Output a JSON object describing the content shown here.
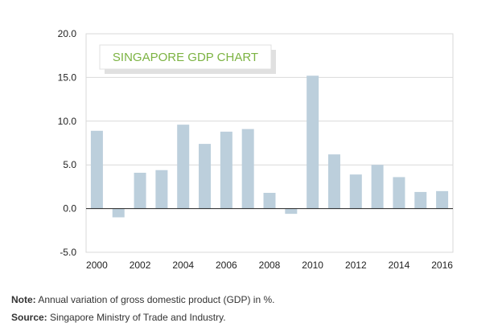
{
  "chart_data": {
    "type": "bar",
    "title": "SINGAPORE GDP CHART",
    "categories": [
      2000,
      2001,
      2002,
      2003,
      2004,
      2005,
      2006,
      2007,
      2008,
      2009,
      2010,
      2011,
      2012,
      2013,
      2014,
      2015,
      2016
    ],
    "values": [
      8.9,
      -1.0,
      4.1,
      4.4,
      9.6,
      7.4,
      8.8,
      9.1,
      1.8,
      -0.6,
      15.2,
      6.2,
      3.9,
      5.0,
      3.6,
      1.9,
      2.0
    ],
    "x_tick_labels": [
      "2000",
      "2002",
      "2004",
      "2006",
      "2008",
      "2010",
      "2012",
      "2014",
      "2016"
    ],
    "y_tick_labels": [
      "20.0",
      "15.0",
      "10.0",
      "5.0",
      "0.0",
      "-5.0"
    ],
    "ylim": [
      -5,
      20
    ],
    "grid": true,
    "colors": {
      "bar": "#bccfdc",
      "grid": "#d9d9d9",
      "title": "#7cb342",
      "axis": "#222222"
    }
  },
  "footer": {
    "note_label": "Note:",
    "note_text": " Annual variation of gross domestic product (GDP) in %.",
    "source_label": "Source:",
    "source_text": " Singapore Ministry of Trade and Industry."
  }
}
